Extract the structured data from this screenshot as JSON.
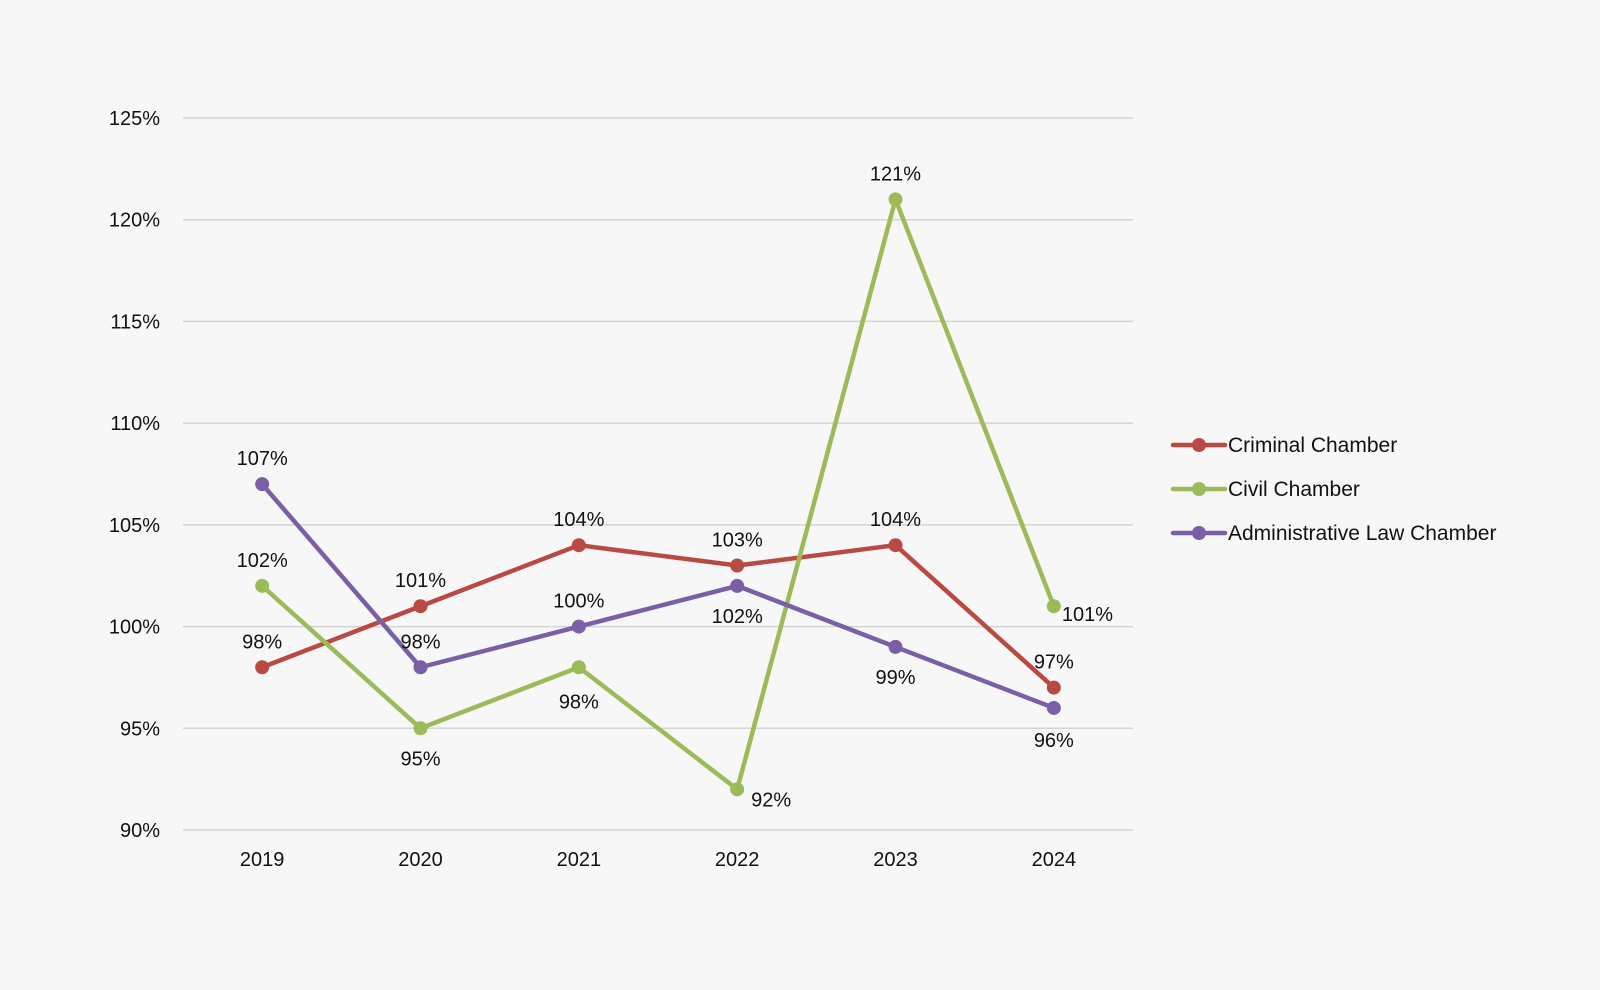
{
  "chart_data": {
    "type": "line",
    "title": "",
    "xlabel": "",
    "ylabel": "",
    "categories": [
      "2019",
      "2020",
      "2021",
      "2022",
      "2023",
      "2024"
    ],
    "y_ticks": [
      "90%",
      "95%",
      "100%",
      "105%",
      "110%",
      "115%",
      "120%",
      "125%"
    ],
    "ylim": [
      90,
      125
    ],
    "y_unit": "%",
    "grid": "horizontal",
    "legend_position": "right",
    "series": [
      {
        "name": "Criminal Chamber",
        "color": "#b84a43",
        "values": [
          98,
          101,
          104,
          103,
          104,
          97
        ],
        "labels": [
          "98%",
          "101%",
          "104%",
          "103%",
          "104%",
          "97%"
        ]
      },
      {
        "name": "Civil Chamber",
        "color": "#9bbb59",
        "values": [
          102,
          95,
          98,
          92,
          121,
          101
        ],
        "labels": [
          "102%",
          "95%",
          "98%",
          "92%",
          "121%",
          "101%"
        ]
      },
      {
        "name": "Administrative Law Chamber",
        "color": "#7a5fa6",
        "values": [
          107,
          98,
          100,
          102,
          99,
          96
        ],
        "labels": [
          "107%",
          "98%",
          "100%",
          "102%",
          "99%",
          "96%"
        ]
      }
    ]
  }
}
